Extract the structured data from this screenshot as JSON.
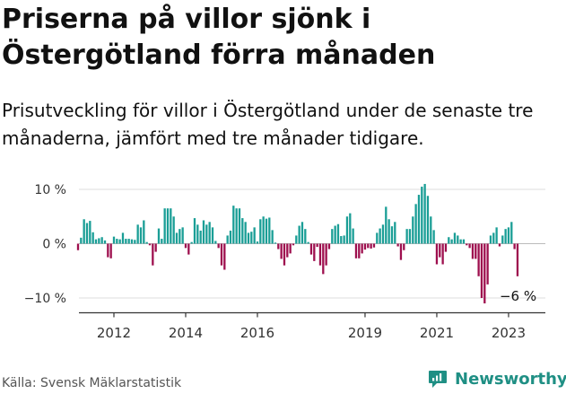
{
  "title": "Priserna på villor sjönk i Östergötland förra månaden",
  "subtitle": "Prisutveckling för villor i Östergötland under de senaste tre månaderna, jämfört med tre månader tidigare.",
  "source": "Källa: Svensk Mäklarstatistik",
  "brand": {
    "name": "Newsworthy",
    "icon": "newsworthy-logo-icon"
  },
  "colors": {
    "positive": "#1a9e96",
    "negative": "#9e0f4e",
    "grid": "#dddddd",
    "axis": "#333333"
  },
  "chart_data": {
    "type": "bar",
    "ylim": [
      -12.5,
      12
    ],
    "y_ticks": [
      {
        "value": 10,
        "label": "10 %"
      },
      {
        "value": 0,
        "label": "0 %"
      },
      {
        "value": -10,
        "label": "−10 %"
      }
    ],
    "x_ticks": [
      {
        "value": 2012,
        "label": "2012"
      },
      {
        "value": 2014,
        "label": "2014"
      },
      {
        "value": 2016,
        "label": "2016"
      },
      {
        "value": 2019,
        "label": "2019"
      },
      {
        "value": 2021,
        "label": "2021"
      },
      {
        "value": 2023,
        "label": "2023"
      }
    ],
    "x_start": "2011-01",
    "values": [
      -1.2,
      1.1,
      4.5,
      3.8,
      4.2,
      2.1,
      0.8,
      1.0,
      1.2,
      0.6,
      -2.5,
      -2.7,
      1.3,
      0.9,
      0.8,
      2.0,
      0.9,
      0.9,
      0.8,
      0.7,
      3.5,
      3.0,
      4.3,
      0.3,
      -0.3,
      -4.0,
      -1.5,
      2.8,
      0.9,
      6.5,
      6.5,
      6.5,
      5.0,
      2.0,
      2.7,
      3.0,
      -0.8,
      -2.0,
      0.3,
      4.7,
      3.5,
      2.4,
      4.3,
      3.5,
      4.0,
      3.0,
      0.5,
      -0.8,
      -4.0,
      -4.8,
      1.5,
      2.4,
      7.0,
      6.5,
      6.5,
      4.7,
      4.0,
      2.0,
      2.2,
      3.0,
      0.4,
      4.5,
      5.0,
      4.6,
      4.8,
      2.5,
      0.2,
      -1.0,
      -2.8,
      -4.0,
      -2.5,
      -1.8,
      -0.3,
      1.5,
      3.3,
      4.0,
      2.7,
      0.3,
      -2.0,
      -3.2,
      -0.6,
      -4.0,
      -5.6,
      -4.0,
      -1.0,
      2.7,
      3.3,
      3.6,
      1.4,
      1.5,
      5.0,
      5.6,
      2.8,
      -2.7,
      -2.7,
      -1.8,
      -1.1,
      -0.8,
      -0.9,
      -0.7,
      2.0,
      2.8,
      3.5,
      6.8,
      4.5,
      3.2,
      4.0,
      -0.5,
      -3.0,
      -1.2,
      2.7,
      2.7,
      5.0,
      7.3,
      9.0,
      10.5,
      11.0,
      8.8,
      5.0,
      2.5,
      -3.8,
      -2.5,
      -3.8,
      -1.5,
      1.2,
      0.8,
      2.0,
      1.5,
      0.8,
      0.8,
      -0.3,
      -0.8,
      -2.8,
      -2.8,
      -6.0,
      -10.0,
      -11.0,
      -7.5,
      1.5,
      2.0,
      3.0,
      -0.5,
      1.5,
      2.7,
      3.0,
      4.0,
      -1.0,
      -6.0
    ],
    "annotation": {
      "label": "−6 %"
    }
  }
}
